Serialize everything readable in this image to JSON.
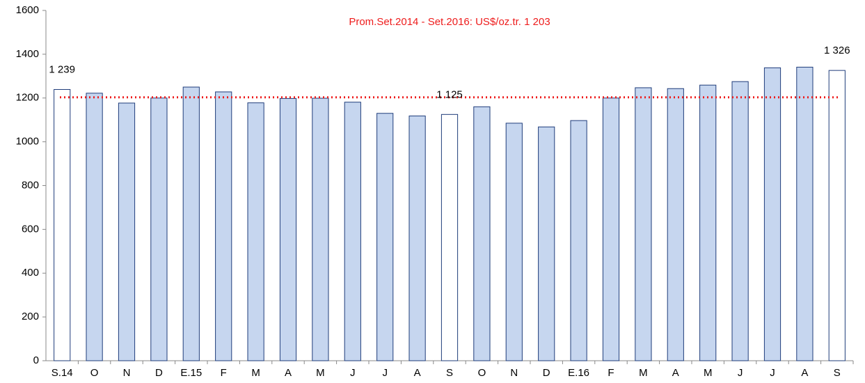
{
  "chart_data": {
    "type": "bar",
    "categories": [
      "S.14",
      "O",
      "N",
      "D",
      "E.15",
      "F",
      "M",
      "A",
      "M",
      "J",
      "J",
      "A",
      "S",
      "O",
      "N",
      "D",
      "E.16",
      "F",
      "M",
      "A",
      "M",
      "J",
      "J",
      "A",
      "S"
    ],
    "values": [
      1239,
      1222,
      1177,
      1200,
      1250,
      1228,
      1178,
      1198,
      1199,
      1181,
      1130,
      1118,
      1125,
      1160,
      1085,
      1068,
      1097,
      1200,
      1247,
      1243,
      1259,
      1275,
      1338,
      1341,
      1326
    ],
    "value_labels": [
      "1 239",
      null,
      null,
      null,
      null,
      null,
      null,
      null,
      null,
      null,
      null,
      null,
      "1 125",
      null,
      null,
      null,
      null,
      null,
      null,
      null,
      null,
      null,
      null,
      null,
      "1 326"
    ],
    "colors": [
      "#ffffff",
      "#c6d6ef",
      "#c6d6ef",
      "#c6d6ef",
      "#c6d6ef",
      "#c6d6ef",
      "#c6d6ef",
      "#c6d6ef",
      "#c6d6ef",
      "#c6d6ef",
      "#c6d6ef",
      "#c6d6ef",
      "#ffffff",
      "#c6d6ef",
      "#c6d6ef",
      "#c6d6ef",
      "#c6d6ef",
      "#c6d6ef",
      "#c6d6ef",
      "#c6d6ef",
      "#c6d6ef",
      "#c6d6ef",
      "#c6d6ef",
      "#c6d6ef",
      "#ffffff"
    ],
    "edge_color": "#1f3c7a",
    "reference_line": {
      "value": 1203,
      "label": "Prom.Set.2014 - Set.2016: US$/oz.tr. 1 203",
      "color": "#ee1c1c"
    },
    "ylim": [
      0,
      1600
    ],
    "yticks": [
      0,
      200,
      400,
      600,
      800,
      1000,
      1200,
      1400,
      1600
    ],
    "grid": false
  }
}
